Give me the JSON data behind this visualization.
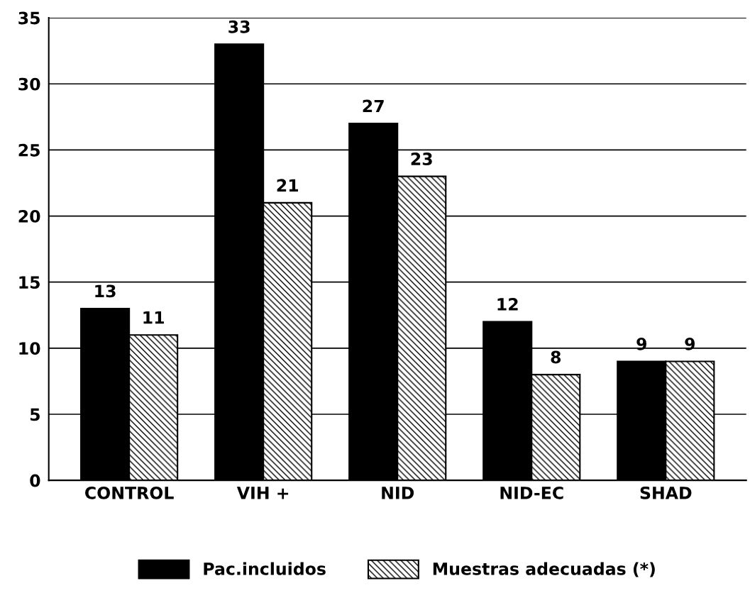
{
  "chart_data": {
    "type": "bar",
    "categories": [
      "CONTROL",
      "VIH +",
      "NID",
      "NID-EC",
      "SHAD"
    ],
    "series": [
      {
        "name": "Pac.incluidos",
        "color": "#000000",
        "values": [
          13,
          33,
          27,
          12,
          9
        ]
      },
      {
        "name": "Muestras adecuadas (*)",
        "color": "#000000",
        "values": [
          11,
          21,
          23,
          8,
          9
        ]
      }
    ],
    "ylim": [
      0,
      35
    ],
    "yticks": [
      0,
      5,
      10,
      15,
      20,
      25,
      30,
      35
    ],
    "grid": "y",
    "legend": "bottom",
    "data_labels": true
  }
}
